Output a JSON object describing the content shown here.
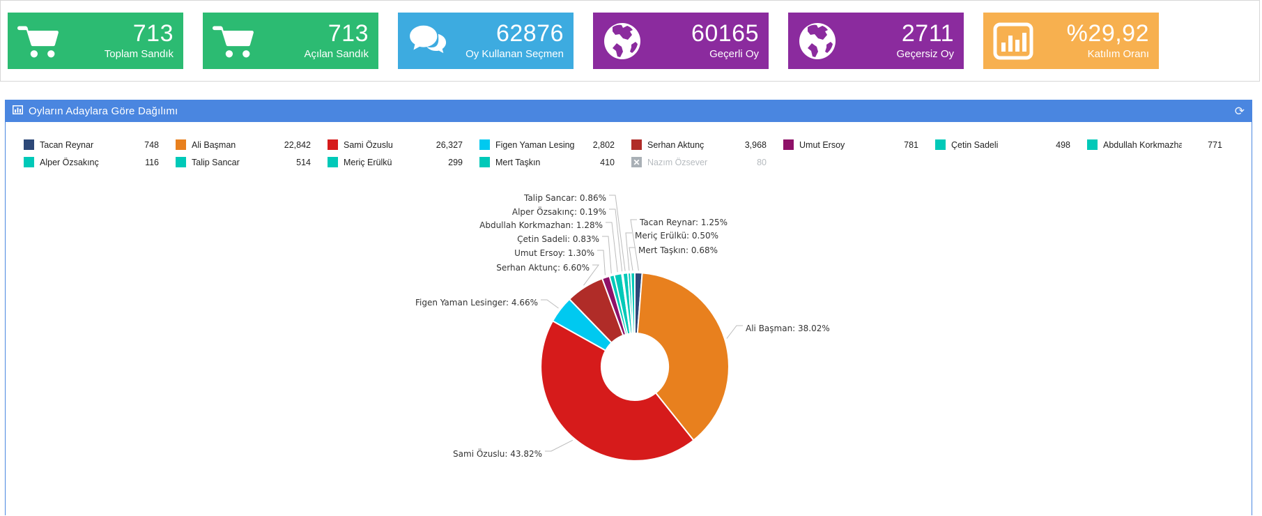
{
  "stat_cards": [
    {
      "icon": "cart-icon",
      "value": "713",
      "label": "Toplam Sandık",
      "color": "#2cbb72"
    },
    {
      "icon": "cart-icon",
      "value": "713",
      "label": "Açılan Sandık",
      "color": "#2cbb72"
    },
    {
      "icon": "comments-icon",
      "value": "62876",
      "label": "Oy Kullanan Seçmen",
      "color": "#3dabe0"
    },
    {
      "icon": "globe-icon",
      "value": "60165",
      "label": "Geçerli Oy",
      "color": "#8b2b9e"
    },
    {
      "icon": "globe-icon",
      "value": "2711",
      "label": "Geçersiz Oy",
      "color": "#8b2b9e"
    },
    {
      "icon": "bar-chart-icon",
      "value": "%29,92",
      "label": "Katılım Oranı",
      "color": "#f7b04f"
    }
  ],
  "panel": {
    "title": "Oyların Adaylara Göre Dağılımı",
    "header_icon": "bar-chart-icon",
    "refresh_icon": "refresh-icon",
    "header_color": "#4a86e0"
  },
  "chart_data": {
    "type": "pie",
    "donut": true,
    "title": "Oyların Adaylara Göre Dağılımı",
    "legend_position": "top",
    "slices": [
      {
        "name": "Tacan Reynar",
        "value": 748,
        "display": "748",
        "pct": "1.25%",
        "color": "#2d4878",
        "hidden": false
      },
      {
        "name": "Ali Başman",
        "value": 22842,
        "display": "22,842",
        "pct": "38.02%",
        "color": "#e8801e",
        "hidden": false
      },
      {
        "name": "Sami Özuslu",
        "value": 26327,
        "display": "26,327",
        "pct": "43.82%",
        "color": "#d61b1b",
        "hidden": false
      },
      {
        "name": "Figen Yaman Lesinger",
        "value": 2802,
        "display": "2,802",
        "pct": "4.66%",
        "color": "#00c9f0",
        "hidden": false
      },
      {
        "name": "Serhan Aktunç",
        "value": 3968,
        "display": "3,968",
        "pct": "6.60%",
        "color": "#b02c28",
        "hidden": false
      },
      {
        "name": "Umut Ersoy",
        "value": 781,
        "display": "781",
        "pct": "1.30%",
        "color": "#8e1168",
        "hidden": false
      },
      {
        "name": "Çetin Sadeli",
        "value": 498,
        "display": "498",
        "pct": "0.83%",
        "color": "#00c9b8",
        "hidden": false
      },
      {
        "name": "Abdullah Korkmazhan",
        "value": 771,
        "display": "771",
        "pct": "1.28%",
        "color": "#00c9b8",
        "hidden": false
      },
      {
        "name": "Alper Özsakınç",
        "value": 116,
        "display": "116",
        "pct": "0.19%",
        "color": "#00c9b8",
        "hidden": false
      },
      {
        "name": "Talip Sancar",
        "value": 514,
        "display": "514",
        "pct": "0.86%",
        "color": "#00c9b8",
        "hidden": false
      },
      {
        "name": "Meriç Erülkü",
        "value": 299,
        "display": "299",
        "pct": "0.50%",
        "color": "#00c9b8",
        "hidden": false
      },
      {
        "name": "Mert Taşkın",
        "value": 410,
        "display": "410",
        "pct": "0.68%",
        "color": "#00c9b8",
        "hidden": false
      },
      {
        "name": "Nazım Özsever",
        "value": 80,
        "display": "80",
        "pct": "",
        "color": "#a9b0b6",
        "hidden": true
      }
    ]
  }
}
